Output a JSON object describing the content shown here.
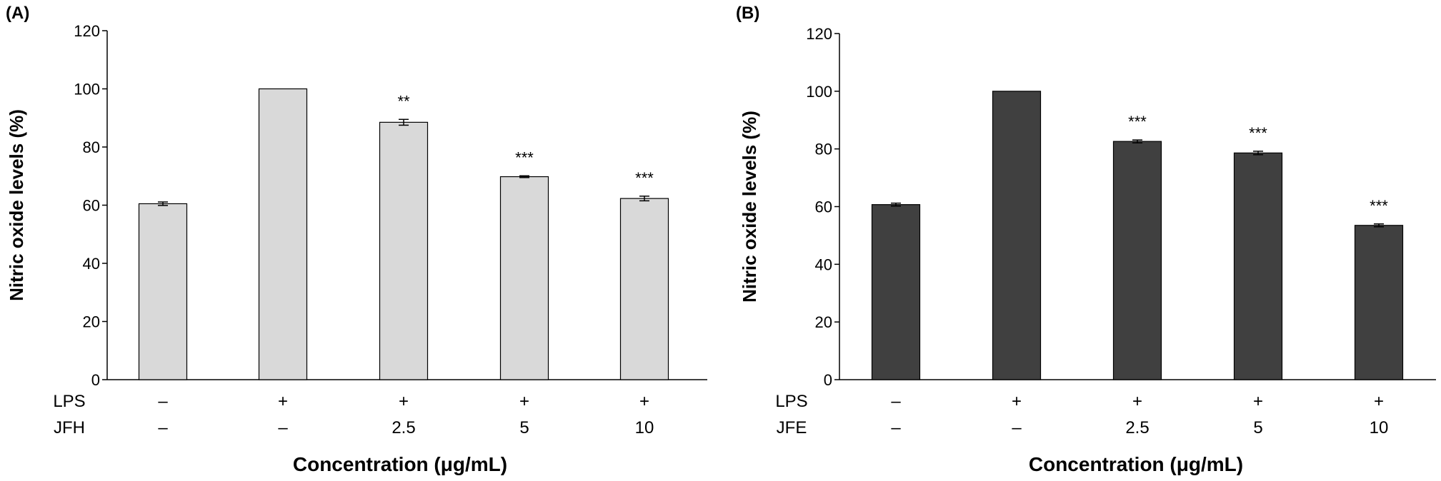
{
  "chart_data": [
    {
      "type": "bar",
      "panel_label": "(A)",
      "ylabel": "Nitric oxide levels (%)",
      "xlabel": "Concentration (μg/mL)",
      "ylim": [
        0,
        120
      ],
      "yticks": [
        0,
        20,
        40,
        60,
        80,
        100,
        120
      ],
      "bar_color": "#d9d9d9",
      "row_labels": [
        "LPS",
        "JFH"
      ],
      "bars": [
        {
          "value": 60.5,
          "error": 0.6,
          "row1": "–",
          "row2": "–",
          "sig": ""
        },
        {
          "value": 100,
          "error": 0,
          "row1": "+",
          "row2": "–",
          "sig": ""
        },
        {
          "value": 88.5,
          "error": 1.0,
          "row1": "+",
          "row2": "2.5",
          "sig": "**"
        },
        {
          "value": 69.8,
          "error": 0.3,
          "row1": "+",
          "row2": "5",
          "sig": "***"
        },
        {
          "value": 62.3,
          "error": 0.8,
          "row1": "+",
          "row2": "10",
          "sig": "***"
        }
      ]
    },
    {
      "type": "bar",
      "panel_label": "(B)",
      "ylabel": "Nitric oxide levels (%)",
      "xlabel": "Concentration (μg/mL)",
      "ylim": [
        0,
        120
      ],
      "yticks": [
        0,
        20,
        40,
        60,
        80,
        100,
        120
      ],
      "bar_color": "#404040",
      "row_labels": [
        "LPS",
        "JFE"
      ],
      "bars": [
        {
          "value": 60.7,
          "error": 0.5,
          "row1": "–",
          "row2": "–",
          "sig": ""
        },
        {
          "value": 100,
          "error": 0,
          "row1": "+",
          "row2": "–",
          "sig": ""
        },
        {
          "value": 82.6,
          "error": 0.5,
          "row1": "+",
          "row2": "2.5",
          "sig": "***"
        },
        {
          "value": 78.6,
          "error": 0.6,
          "row1": "+",
          "row2": "5",
          "sig": "***"
        },
        {
          "value": 53.5,
          "error": 0.5,
          "row1": "+",
          "row2": "10",
          "sig": "***"
        }
      ]
    }
  ]
}
